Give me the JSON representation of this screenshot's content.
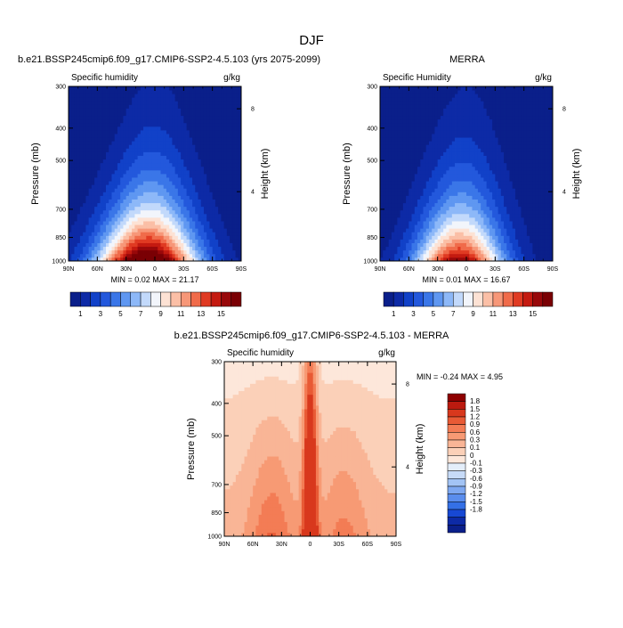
{
  "figure": {
    "main_title": "DJF",
    "variable": "Specific humidity",
    "units": "g/kg",
    "min_label": "MIN =",
    "max_label": "MAX ="
  },
  "colors": {
    "absolute_palette": [
      "#0a1f8a",
      "#0d2aa6",
      "#1141c8",
      "#2358dc",
      "#3a76e8",
      "#5f97f1",
      "#8db8f8",
      "#c2d9fb",
      "#f2f5fb",
      "#fde2d4",
      "#fbbfa6",
      "#f79778",
      "#f06b4a",
      "#e03a22",
      "#c41a10",
      "#98080a",
      "#7a0004"
    ],
    "diff_palette": [
      "#0a1f8a",
      "#0d2aa6",
      "#1748d4",
      "#3470e6",
      "#5a8ded",
      "#7ea8f1",
      "#a3c4f5",
      "#c7dbf8",
      "#e4eefa",
      "#fde7da",
      "#fbd0b8",
      "#f9b596",
      "#f79a74",
      "#f37c55",
      "#e85a35",
      "#d8381d",
      "#bb1a0f",
      "#8e0000"
    ]
  },
  "chart_data": [
    {
      "type": "heatmap",
      "panel": "model",
      "title": "b.e21.BSSP245cmip6.f09_g17.CMIP6-SSP2-4.5.103 (yrs 2075-2099)",
      "subtitle_left": "Specific humidity",
      "subtitle_right": "g/kg",
      "xlabel": "",
      "ylabel": "Pressure (mb)",
      "right_ylabel": "Height (km)",
      "x_ticks": [
        "90N",
        "60N",
        "30N",
        "0",
        "30S",
        "60S",
        "90S"
      ],
      "y_ticks": [
        "300",
        "400",
        "500",
        "700",
        "850",
        "1000"
      ],
      "right_ticks": [
        "8",
        "4"
      ],
      "x_range": [
        90,
        -90
      ],
      "y_range_mb": [
        1000,
        300
      ],
      "y_scale": "log",
      "min": 0.02,
      "max": 21.17,
      "levels": [
        1,
        2,
        3,
        4,
        5,
        6,
        7,
        8,
        9,
        10,
        11,
        12,
        13,
        14,
        15,
        16
      ],
      "colorbar_labels": [
        "1",
        "3",
        "5",
        "7",
        "9",
        "11",
        "13",
        "15"
      ],
      "peak": 19.5,
      "tropopause_halfwidth": 52
    },
    {
      "type": "heatmap",
      "panel": "obs",
      "title": "MERRA",
      "subtitle_left": "Specific Humidity",
      "subtitle_right": "g/kg",
      "xlabel": "",
      "ylabel": "Pressure (mb)",
      "right_ylabel": "Height (km)",
      "x_ticks": [
        "90N",
        "60N",
        "30N",
        "0",
        "30S",
        "60S",
        "90S"
      ],
      "y_ticks": [
        "300",
        "400",
        "500",
        "700",
        "850",
        "1000"
      ],
      "right_ticks": [
        "8",
        "4"
      ],
      "x_range": [
        90,
        -90
      ],
      "y_range_mb": [
        1000,
        300
      ],
      "y_scale": "log",
      "min": 0.01,
      "max": 16.67,
      "levels": [
        1,
        2,
        3,
        4,
        5,
        6,
        7,
        8,
        9,
        10,
        11,
        12,
        13,
        14,
        15,
        16
      ],
      "colorbar_labels": [
        "1",
        "3",
        "5",
        "7",
        "9",
        "11",
        "13",
        "15"
      ],
      "peak": 16.0,
      "tropopause_halfwidth": 46
    },
    {
      "type": "heatmap",
      "panel": "difference",
      "title": "b.e21.BSSP245cmip6.f09_g17.CMIP6-SSP2-4.5.103 - MERRA",
      "subtitle_left": "Specific humidity",
      "subtitle_right": "g/kg",
      "xlabel": "",
      "ylabel": "Pressure (mb)",
      "right_ylabel": "Height (km)",
      "x_ticks": [
        "90N",
        "60N",
        "30N",
        "0",
        "30S",
        "60S",
        "90S"
      ],
      "y_ticks": [
        "300",
        "400",
        "500",
        "700",
        "850",
        "1000"
      ],
      "right_ticks": [
        "8",
        "4"
      ],
      "x_range": [
        90,
        -90
      ],
      "y_range_mb": [
        1000,
        300
      ],
      "y_scale": "log",
      "min": -0.24,
      "max": 4.95,
      "levels": [
        -1.8,
        -1.5,
        -1.2,
        -0.9,
        -0.6,
        -0.3,
        -0.1,
        0,
        0.1,
        0.3,
        0.6,
        0.9,
        1.2,
        1.5,
        1.8
      ],
      "colorbar_labels": [
        "1.8",
        "1.5",
        "1.2",
        "0.9",
        "0.6",
        "0.3",
        "0.1",
        "0",
        "-0.1",
        "-0.3",
        "-0.6",
        "-0.9",
        "-1.2",
        "-1.5",
        "-1.8"
      ]
    }
  ]
}
